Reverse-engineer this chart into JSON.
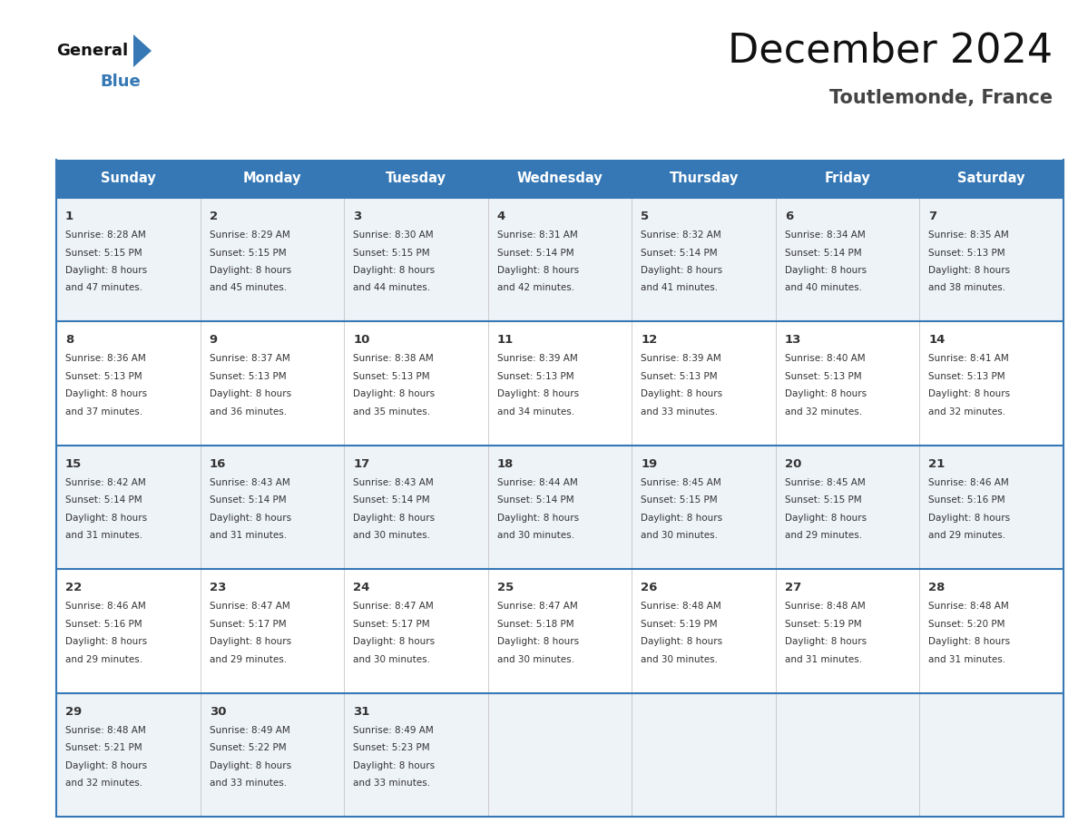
{
  "title": "December 2024",
  "subtitle": "Toutlemonde, France",
  "header_bg": "#3578B5",
  "header_text": "#FFFFFF",
  "cell_bg_light": "#EEF3F8",
  "cell_bg_white": "#FFFFFF",
  "row_line_color": "#3578B5",
  "text_color": "#333333",
  "days_of_week": [
    "Sunday",
    "Monday",
    "Tuesday",
    "Wednesday",
    "Thursday",
    "Friday",
    "Saturday"
  ],
  "weeks": [
    [
      {
        "day": "1",
        "sunrise": "8:28 AM",
        "sunset": "5:15 PM",
        "daylight_h": "8 hours",
        "daylight_m": "47 minutes."
      },
      {
        "day": "2",
        "sunrise": "8:29 AM",
        "sunset": "5:15 PM",
        "daylight_h": "8 hours",
        "daylight_m": "45 minutes."
      },
      {
        "day": "3",
        "sunrise": "8:30 AM",
        "sunset": "5:15 PM",
        "daylight_h": "8 hours",
        "daylight_m": "44 minutes."
      },
      {
        "day": "4",
        "sunrise": "8:31 AM",
        "sunset": "5:14 PM",
        "daylight_h": "8 hours",
        "daylight_m": "42 minutes."
      },
      {
        "day": "5",
        "sunrise": "8:32 AM",
        "sunset": "5:14 PM",
        "daylight_h": "8 hours",
        "daylight_m": "41 minutes."
      },
      {
        "day": "6",
        "sunrise": "8:34 AM",
        "sunset": "5:14 PM",
        "daylight_h": "8 hours",
        "daylight_m": "40 minutes."
      },
      {
        "day": "7",
        "sunrise": "8:35 AM",
        "sunset": "5:13 PM",
        "daylight_h": "8 hours",
        "daylight_m": "38 minutes."
      }
    ],
    [
      {
        "day": "8",
        "sunrise": "8:36 AM",
        "sunset": "5:13 PM",
        "daylight_h": "8 hours",
        "daylight_m": "37 minutes."
      },
      {
        "day": "9",
        "sunrise": "8:37 AM",
        "sunset": "5:13 PM",
        "daylight_h": "8 hours",
        "daylight_m": "36 minutes."
      },
      {
        "day": "10",
        "sunrise": "8:38 AM",
        "sunset": "5:13 PM",
        "daylight_h": "8 hours",
        "daylight_m": "35 minutes."
      },
      {
        "day": "11",
        "sunrise": "8:39 AM",
        "sunset": "5:13 PM",
        "daylight_h": "8 hours",
        "daylight_m": "34 minutes."
      },
      {
        "day": "12",
        "sunrise": "8:39 AM",
        "sunset": "5:13 PM",
        "daylight_h": "8 hours",
        "daylight_m": "33 minutes."
      },
      {
        "day": "13",
        "sunrise": "8:40 AM",
        "sunset": "5:13 PM",
        "daylight_h": "8 hours",
        "daylight_m": "32 minutes."
      },
      {
        "day": "14",
        "sunrise": "8:41 AM",
        "sunset": "5:13 PM",
        "daylight_h": "8 hours",
        "daylight_m": "32 minutes."
      }
    ],
    [
      {
        "day": "15",
        "sunrise": "8:42 AM",
        "sunset": "5:14 PM",
        "daylight_h": "8 hours",
        "daylight_m": "31 minutes."
      },
      {
        "day": "16",
        "sunrise": "8:43 AM",
        "sunset": "5:14 PM",
        "daylight_h": "8 hours",
        "daylight_m": "31 minutes."
      },
      {
        "day": "17",
        "sunrise": "8:43 AM",
        "sunset": "5:14 PM",
        "daylight_h": "8 hours",
        "daylight_m": "30 minutes."
      },
      {
        "day": "18",
        "sunrise": "8:44 AM",
        "sunset": "5:14 PM",
        "daylight_h": "8 hours",
        "daylight_m": "30 minutes."
      },
      {
        "day": "19",
        "sunrise": "8:45 AM",
        "sunset": "5:15 PM",
        "daylight_h": "8 hours",
        "daylight_m": "30 minutes."
      },
      {
        "day": "20",
        "sunrise": "8:45 AM",
        "sunset": "5:15 PM",
        "daylight_h": "8 hours",
        "daylight_m": "29 minutes."
      },
      {
        "day": "21",
        "sunrise": "8:46 AM",
        "sunset": "5:16 PM",
        "daylight_h": "8 hours",
        "daylight_m": "29 minutes."
      }
    ],
    [
      {
        "day": "22",
        "sunrise": "8:46 AM",
        "sunset": "5:16 PM",
        "daylight_h": "8 hours",
        "daylight_m": "29 minutes."
      },
      {
        "day": "23",
        "sunrise": "8:47 AM",
        "sunset": "5:17 PM",
        "daylight_h": "8 hours",
        "daylight_m": "29 minutes."
      },
      {
        "day": "24",
        "sunrise": "8:47 AM",
        "sunset": "5:17 PM",
        "daylight_h": "8 hours",
        "daylight_m": "30 minutes."
      },
      {
        "day": "25",
        "sunrise": "8:47 AM",
        "sunset": "5:18 PM",
        "daylight_h": "8 hours",
        "daylight_m": "30 minutes."
      },
      {
        "day": "26",
        "sunrise": "8:48 AM",
        "sunset": "5:19 PM",
        "daylight_h": "8 hours",
        "daylight_m": "30 minutes."
      },
      {
        "day": "27",
        "sunrise": "8:48 AM",
        "sunset": "5:19 PM",
        "daylight_h": "8 hours",
        "daylight_m": "31 minutes."
      },
      {
        "day": "28",
        "sunrise": "8:48 AM",
        "sunset": "5:20 PM",
        "daylight_h": "8 hours",
        "daylight_m": "31 minutes."
      }
    ],
    [
      {
        "day": "29",
        "sunrise": "8:48 AM",
        "sunset": "5:21 PM",
        "daylight_h": "8 hours",
        "daylight_m": "32 minutes."
      },
      {
        "day": "30",
        "sunrise": "8:49 AM",
        "sunset": "5:22 PM",
        "daylight_h": "8 hours",
        "daylight_m": "33 minutes."
      },
      {
        "day": "31",
        "sunrise": "8:49 AM",
        "sunset": "5:23 PM",
        "daylight_h": "8 hours",
        "daylight_m": "33 minutes."
      },
      null,
      null,
      null,
      null
    ]
  ],
  "logo_general_color": "#111111",
  "logo_blue_color": "#3578B5",
  "logo_triangle_color": "#3578B5"
}
